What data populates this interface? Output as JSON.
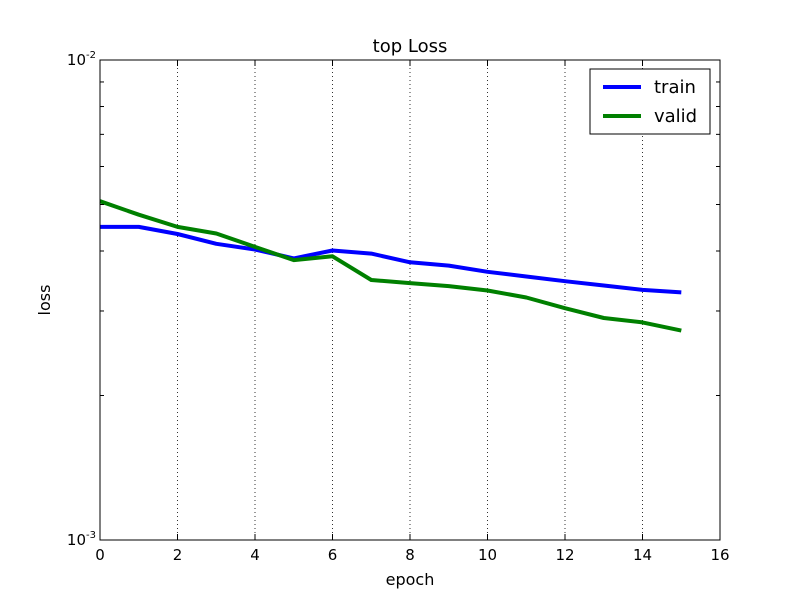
{
  "chart_data": {
    "type": "line",
    "title": "top Loss",
    "xlabel": "epoch",
    "ylabel": "loss",
    "xlim": [
      0,
      16
    ],
    "ylim": [
      0.001,
      0.01
    ],
    "yscale": "log",
    "grid": "vertical-dotted",
    "legend_position": "top-right",
    "x_ticks": [
      0,
      2,
      4,
      6,
      8,
      10,
      12,
      14,
      16
    ],
    "x_tick_labels": [
      "0",
      "2",
      "4",
      "6",
      "8",
      "10",
      "12",
      "14",
      "16"
    ],
    "y_tick_labels": [
      {
        "base": "10",
        "exp": "-2",
        "value": 0.01
      },
      {
        "base": "10",
        "exp": "-3",
        "value": 0.001
      }
    ],
    "x": [
      0,
      1,
      2,
      3,
      4,
      5,
      6,
      7,
      8,
      9,
      10,
      11,
      12,
      13,
      14,
      15
    ],
    "series": [
      {
        "name": "train",
        "color": "#0000ff",
        "values": [
          0.00449,
          0.00449,
          0.00434,
          0.00414,
          0.00403,
          0.00386,
          0.00401,
          0.00395,
          0.00379,
          0.00373,
          0.00362,
          0.00354,
          0.00346,
          0.00339,
          0.00332,
          0.00328
        ]
      },
      {
        "name": "valid",
        "color": "#008000",
        "values": [
          0.00508,
          0.00476,
          0.00449,
          0.00435,
          0.00408,
          0.00383,
          0.0039,
          0.00348,
          0.00343,
          0.00338,
          0.00331,
          0.0032,
          0.00304,
          0.0029,
          0.00284,
          0.00273
        ]
      }
    ]
  }
}
